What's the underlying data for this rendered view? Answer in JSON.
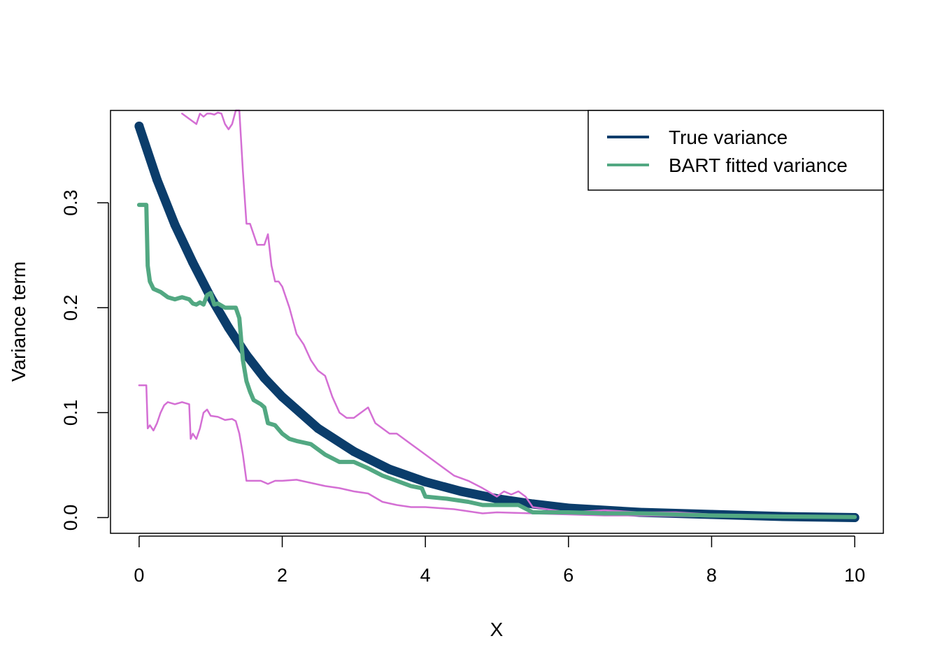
{
  "chart_data": {
    "type": "line",
    "title": "",
    "xlabel": "X",
    "ylabel": "Variance term",
    "xlim": [
      -0.4,
      10.4
    ],
    "ylim": [
      -0.015,
      0.388
    ],
    "x_ticks": [
      0,
      2,
      4,
      6,
      8,
      10
    ],
    "x_tick_labels": [
      "0",
      "2",
      "4",
      "6",
      "8",
      "10"
    ],
    "y_ticks": [
      0.0,
      0.1,
      0.2,
      0.3
    ],
    "y_tick_labels": [
      "0.0",
      "0.1",
      "0.2",
      "0.3"
    ],
    "grid": false,
    "legend": {
      "position": "top-right",
      "entries": [
        {
          "label": "True variance",
          "color": "#0b3d6b"
        },
        {
          "label": "BART fitted variance",
          "color": "#52a882"
        }
      ]
    },
    "series": [
      {
        "name": "True variance",
        "color": "#0b3d6b",
        "style": "thick-points",
        "x": [
          0,
          0.25,
          0.5,
          0.75,
          1.0,
          1.25,
          1.5,
          1.75,
          2.0,
          2.5,
          3.0,
          3.5,
          4.0,
          4.5,
          5.0,
          5.5,
          6.0,
          7.0,
          8.0,
          9.0,
          10.0
        ],
        "y": [
          0.373,
          0.322,
          0.279,
          0.243,
          0.21,
          0.181,
          0.155,
          0.133,
          0.115,
          0.085,
          0.063,
          0.046,
          0.034,
          0.025,
          0.018,
          0.013,
          0.009,
          0.005,
          0.003,
          0.001,
          0.0
        ]
      },
      {
        "color": "#52a882",
        "style": "thick-line",
        "x": [
          0,
          0.1,
          0.12,
          0.15,
          0.2,
          0.3,
          0.4,
          0.5,
          0.6,
          0.7,
          0.75,
          0.8,
          0.85,
          0.9,
          0.95,
          1.0,
          1.05,
          1.1,
          1.2,
          1.3,
          1.35,
          1.4,
          1.45,
          1.5,
          1.55,
          1.6,
          1.7,
          1.75,
          1.8,
          1.9,
          2.0,
          2.1,
          2.2,
          2.4,
          2.6,
          2.8,
          3.0,
          3.2,
          3.4,
          3.6,
          3.8,
          3.95,
          4.0,
          4.3,
          4.6,
          4.8,
          5.0,
          5.3,
          5.5,
          6.0,
          6.5,
          7.0,
          7.5,
          8.0,
          9.0,
          10.0
        ],
        "y": [
          0.298,
          0.298,
          0.24,
          0.225,
          0.218,
          0.215,
          0.21,
          0.208,
          0.21,
          0.208,
          0.204,
          0.203,
          0.205,
          0.203,
          0.212,
          0.214,
          0.203,
          0.204,
          0.2,
          0.2,
          0.2,
          0.19,
          0.15,
          0.13,
          0.12,
          0.112,
          0.108,
          0.105,
          0.09,
          0.088,
          0.08,
          0.075,
          0.073,
          0.07,
          0.06,
          0.053,
          0.053,
          0.047,
          0.04,
          0.035,
          0.03,
          0.028,
          0.02,
          0.018,
          0.015,
          0.012,
          0.012,
          0.012,
          0.005,
          0.005,
          0.004,
          0.004,
          0.003,
          0.002,
          0.001,
          0.0005
        ]
      },
      {
        "color": "#d46fd4",
        "style": "thin-line",
        "x": [
          0.6,
          0.7,
          0.8,
          0.85,
          0.9,
          0.95,
          1.0,
          1.05,
          1.1,
          1.15,
          1.2,
          1.25,
          1.3,
          1.35,
          1.4,
          1.45,
          1.5,
          1.55,
          1.6,
          1.65,
          1.7,
          1.75,
          1.8,
          1.85,
          1.9,
          1.95,
          2.0,
          2.05,
          2.1,
          2.2,
          2.3,
          2.4,
          2.5,
          2.6,
          2.7,
          2.8,
          2.9,
          3.0,
          3.1,
          3.2,
          3.3,
          3.4,
          3.5,
          3.6,
          3.7,
          3.8,
          3.9,
          4.0,
          4.2,
          4.4,
          4.6,
          4.8,
          5.0,
          5.1,
          5.2,
          5.3,
          5.4,
          5.5,
          6.0,
          6.5,
          7.0,
          7.5,
          8.0,
          9.0,
          10.0
        ],
        "y": [
          0.385,
          0.38,
          0.375,
          0.385,
          0.382,
          0.385,
          0.385,
          0.384,
          0.386,
          0.385,
          0.375,
          0.37,
          0.375,
          0.388,
          0.388,
          0.33,
          0.28,
          0.28,
          0.27,
          0.26,
          0.26,
          0.26,
          0.27,
          0.24,
          0.225,
          0.225,
          0.22,
          0.21,
          0.2,
          0.175,
          0.165,
          0.15,
          0.14,
          0.135,
          0.115,
          0.1,
          0.095,
          0.095,
          0.1,
          0.105,
          0.09,
          0.085,
          0.08,
          0.08,
          0.075,
          0.07,
          0.065,
          0.06,
          0.05,
          0.04,
          0.035,
          0.028,
          0.02,
          0.025,
          0.022,
          0.025,
          0.02,
          0.01,
          0.005,
          0.007,
          0.005,
          0.005,
          0.003,
          0.002,
          0.001
        ]
      },
      {
        "color": "#d46fd4",
        "style": "thin-line",
        "x": [
          0,
          0.1,
          0.12,
          0.15,
          0.2,
          0.25,
          0.3,
          0.35,
          0.4,
          0.5,
          0.6,
          0.7,
          0.72,
          0.75,
          0.8,
          0.85,
          0.9,
          0.95,
          1.0,
          1.1,
          1.2,
          1.3,
          1.35,
          1.4,
          1.45,
          1.5,
          1.6,
          1.7,
          1.8,
          1.9,
          2.0,
          2.2,
          2.4,
          2.6,
          2.8,
          3.0,
          3.2,
          3.4,
          3.6,
          3.8,
          4.0,
          4.2,
          4.4,
          4.6,
          4.8,
          5.0,
          5.5,
          6.0,
          6.5,
          7.0,
          8.0,
          9.0,
          10.0
        ],
        "y": [
          0.126,
          0.126,
          0.085,
          0.088,
          0.083,
          0.09,
          0.1,
          0.107,
          0.11,
          0.108,
          0.11,
          0.108,
          0.075,
          0.08,
          0.075,
          0.085,
          0.1,
          0.103,
          0.097,
          0.096,
          0.093,
          0.094,
          0.092,
          0.08,
          0.06,
          0.035,
          0.035,
          0.035,
          0.032,
          0.035,
          0.035,
          0.036,
          0.033,
          0.03,
          0.028,
          0.025,
          0.023,
          0.015,
          0.012,
          0.01,
          0.01,
          0.009,
          0.008,
          0.006,
          0.004,
          0.005,
          0.004,
          0.003,
          0.002,
          0.002,
          0.001,
          0.001,
          0.0005
        ]
      }
    ]
  }
}
